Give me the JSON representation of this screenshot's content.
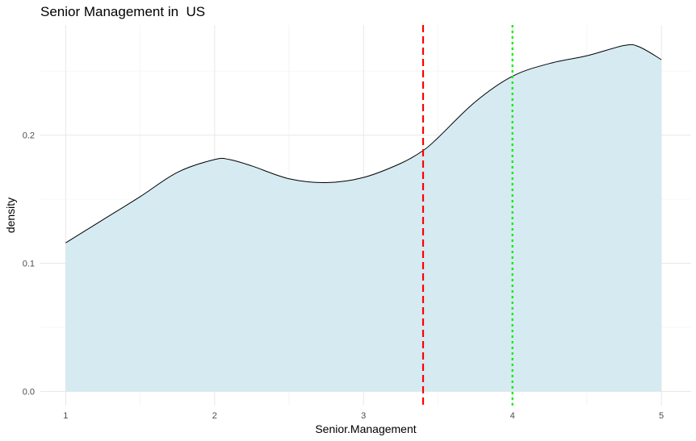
{
  "chart_data": {
    "type": "area",
    "title": "Senior Management in  US",
    "xlabel": "Senior.Management",
    "ylabel": "density",
    "xlim": [
      0.83,
      5.2
    ],
    "ylim": [
      -0.011,
      0.286
    ],
    "x_ticks": [
      "1",
      "2",
      "3",
      "4",
      "5"
    ],
    "y_ticks": [
      "0.0",
      "0.1",
      "0.2"
    ],
    "grid": true,
    "legend": "none",
    "fill_color": "#d6eaf2",
    "line_color": "#000000",
    "series": [
      {
        "x": [
          1.0,
          1.25,
          1.5,
          1.75,
          2.0,
          2.1,
          2.25,
          2.5,
          2.75,
          3.0,
          3.25,
          3.4,
          3.5,
          3.75,
          4.0,
          4.25,
          4.5,
          4.75,
          4.85,
          5.0
        ],
        "y": [
          0.116,
          0.134,
          0.152,
          0.171,
          0.181,
          0.181,
          0.176,
          0.166,
          0.163,
          0.167,
          0.178,
          0.188,
          0.198,
          0.226,
          0.246,
          0.256,
          0.262,
          0.27,
          0.269,
          0.259
        ]
      }
    ],
    "vlines": [
      {
        "x": 3.4,
        "color": "#ff0000",
        "style": "dashed"
      },
      {
        "x": 4.0,
        "color": "#00ee00",
        "style": "dotted"
      }
    ]
  }
}
